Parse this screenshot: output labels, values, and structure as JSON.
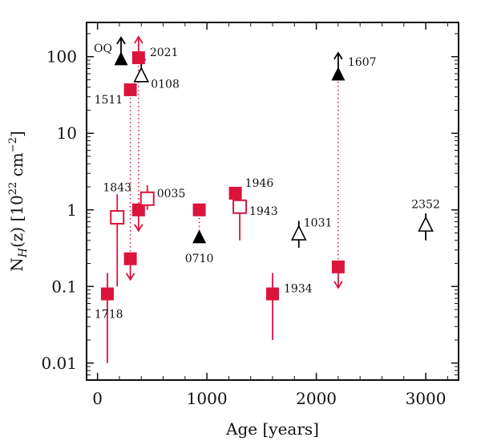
{
  "chart_data": {
    "type": "scatter",
    "title": "",
    "xlabel": "Age [years]",
    "ylabel_main": "N",
    "ylabel_sub": "H",
    "ylabel_mid": "(z)  [10",
    "ylabel_sup1": "22",
    "ylabel_unit": " cm",
    "ylabel_sup2": "−2",
    "ylabel_end": "]",
    "xlim": [
      -100,
      3300
    ],
    "ylim": [
      0.006,
      280
    ],
    "yscale": "log",
    "xticks": [
      {
        "value": 0,
        "label": "0"
      },
      {
        "value": 1000,
        "label": "1000"
      },
      {
        "value": 2000,
        "label": "2000"
      },
      {
        "value": 3000,
        "label": "3000"
      }
    ],
    "yticks": [
      {
        "value": 0.01,
        "label": "0.01"
      },
      {
        "value": 0.1,
        "label": "0.1"
      },
      {
        "value": 1,
        "label": "1"
      },
      {
        "value": 10,
        "label": "10"
      },
      {
        "value": 100,
        "label": "100"
      }
    ],
    "colors": {
      "red": "#dc143c",
      "black": "#000000"
    },
    "points": [
      {
        "id": "1718",
        "x": 90,
        "y": 0.08,
        "marker": "square",
        "filled": true,
        "color": "red",
        "yerr": [
          0.01,
          0.15
        ],
        "label": "1718",
        "label_pos": "below-right"
      },
      {
        "id": "1843",
        "x": 180,
        "y": 0.8,
        "marker": "square",
        "filled": false,
        "color": "red",
        "yerr": [
          0.1,
          1.6
        ],
        "label": "1843",
        "label_pos": "above"
      },
      {
        "id": "1511",
        "x": 300,
        "y": 37,
        "marker": "square",
        "filled": true,
        "color": "red",
        "yerr": null,
        "label": "1511",
        "label_pos": "below-left"
      },
      {
        "id": "1511-low",
        "x": 300,
        "y": 0.23,
        "marker": "square",
        "filled": true,
        "color": "red",
        "yerr": null,
        "limit": "upper",
        "label": "",
        "label_pos": ""
      },
      {
        "id": "2021",
        "x": 375,
        "y": 97,
        "marker": "square",
        "filled": true,
        "color": "red",
        "yerr": null,
        "limit": "lower",
        "label": "2021",
        "label_pos": "right"
      },
      {
        "id": "2021-low",
        "x": 375,
        "y": 1.0,
        "marker": "square",
        "filled": true,
        "color": "red",
        "yerr": null,
        "limit": "upper",
        "label": "",
        "label_pos": ""
      },
      {
        "id": "0035",
        "x": 455,
        "y": 1.4,
        "marker": "square",
        "filled": false,
        "color": "red",
        "yerr": [
          1.0,
          2.1
        ],
        "label": "0035",
        "label_pos": "right"
      },
      {
        "id": "0710",
        "x": 930,
        "y": 1.0,
        "marker": "square",
        "filled": true,
        "color": "red",
        "yerr": null,
        "label": "",
        "label_pos": ""
      },
      {
        "id": "0710-tri",
        "x": 930,
        "y": 0.45,
        "marker": "triangle",
        "filled": true,
        "color": "black",
        "yerr": null,
        "label": "0710",
        "label_pos": "below"
      },
      {
        "id": "1946",
        "x": 1260,
        "y": 1.65,
        "marker": "square",
        "filled": true,
        "color": "red",
        "yerr": null,
        "label": "1946",
        "label_pos": "right"
      },
      {
        "id": "1943",
        "x": 1300,
        "y": 1.1,
        "marker": "square",
        "filled": false,
        "color": "red",
        "yerr": [
          0.4,
          1.6
        ],
        "label": "1943",
        "label_pos": "right"
      },
      {
        "id": "1934",
        "x": 1600,
        "y": 0.08,
        "marker": "square",
        "filled": true,
        "color": "red",
        "yerr": [
          0.02,
          0.15
        ],
        "label": "1934",
        "label_pos": "right"
      },
      {
        "id": "1031",
        "x": 1840,
        "y": 0.5,
        "marker": "triangle",
        "filled": false,
        "color": "black",
        "yerr": [
          0.32,
          0.72
        ],
        "label": "1031",
        "label_pos": "right"
      },
      {
        "id": "1607",
        "x": 2200,
        "y": 60,
        "marker": "triangle",
        "filled": true,
        "color": "black",
        "yerr": null,
        "limit": "lower",
        "label": "1607",
        "label_pos": "right"
      },
      {
        "id": "1607-red",
        "x": 2200,
        "y": 0.18,
        "marker": "square",
        "filled": true,
        "color": "red",
        "yerr": null,
        "limit": "upper",
        "label": "",
        "label_pos": ""
      },
      {
        "id": "2352",
        "x": 3000,
        "y": 0.65,
        "marker": "triangle",
        "filled": false,
        "color": "black",
        "yerr": [
          0.4,
          0.9
        ],
        "label": "2352",
        "label_pos": "above"
      },
      {
        "id": "OQ",
        "x": 215,
        "y": 95,
        "marker": "triangle",
        "filled": true,
        "color": "black",
        "yerr": null,
        "limit": "lower",
        "label": "OQ",
        "label_pos": "left"
      },
      {
        "id": "0108",
        "x": 400,
        "y": 58,
        "marker": "triangle",
        "filled": false,
        "color": "black",
        "yerr": null,
        "limit": "lower",
        "label": "0108",
        "label_pos": "below-right"
      }
    ],
    "dotted_links": [
      {
        "x": 300,
        "y1": 37,
        "y2": 0.23,
        "color": "red"
      },
      {
        "x": 375,
        "y1": 97,
        "y2": 1.0,
        "color": "red"
      },
      {
        "x": 930,
        "y1": 1.0,
        "y2": 0.45,
        "color": "red"
      },
      {
        "x": 2200,
        "y1": 60,
        "y2": 0.18,
        "color": "red"
      }
    ]
  }
}
